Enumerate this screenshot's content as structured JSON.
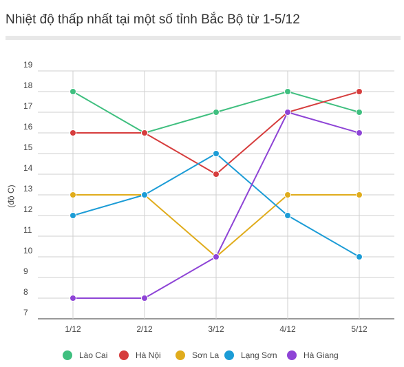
{
  "title": "Nhiệt độ thấp nhất tại một số tỉnh Bắc Bộ từ 1-5/12",
  "chart_data": {
    "type": "line",
    "title": "",
    "xlabel": "",
    "ylabel": "(độ C)",
    "categories": [
      "1/12",
      "2/12",
      "3/12",
      "4/12",
      "5/12"
    ],
    "ylim": [
      7,
      19
    ],
    "yticks": [
      7,
      8,
      9,
      10,
      11,
      12,
      13,
      14,
      15,
      16,
      17,
      18,
      19
    ],
    "grid": true,
    "legend_position": "bottom",
    "series": [
      {
        "name": "Lào Cai",
        "color": "#3fbf7f",
        "values": [
          18,
          16,
          17,
          18,
          17
        ]
      },
      {
        "name": "Hà Nội",
        "color": "#d63d3d",
        "values": [
          16,
          16,
          14,
          17,
          18
        ]
      },
      {
        "name": "Sơn La",
        "color": "#e0ac1c",
        "values": [
          13,
          13,
          10,
          13,
          13
        ]
      },
      {
        "name": "Lạng Sơn",
        "color": "#1c9cd6",
        "values": [
          12,
          13,
          15,
          12,
          10
        ]
      },
      {
        "name": "Hà Giang",
        "color": "#8e44d6",
        "values": [
          8,
          8,
          10,
          17,
          16
        ]
      }
    ]
  }
}
